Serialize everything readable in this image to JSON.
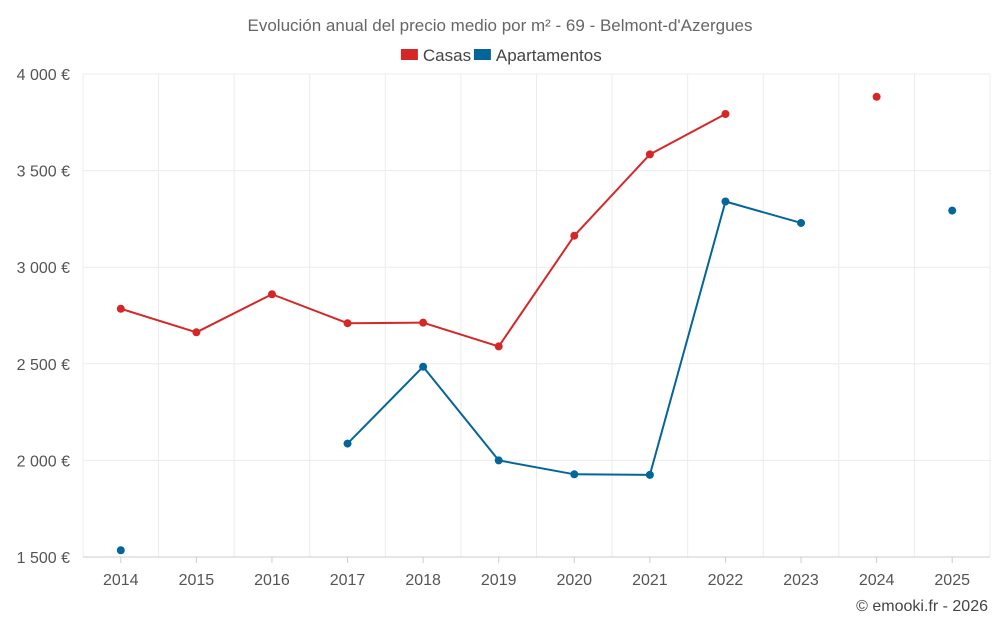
{
  "chart_data": {
    "type": "line",
    "title": "Evolución anual del precio medio por m² - 69 - Belmont-d'Azergues",
    "categories": [
      "2014",
      "2015",
      "2016",
      "2017",
      "2018",
      "2019",
      "2020",
      "2021",
      "2022",
      "2023",
      "2024",
      "2025"
    ],
    "ylim": [
      1500,
      4000
    ],
    "yticks": [
      1500,
      2000,
      2500,
      3000,
      3500,
      4000
    ],
    "ytick_labels": [
      "1 500 €",
      "2 000 €",
      "2 500 €",
      "3 000 €",
      "3 500 €",
      "4 000 €"
    ],
    "xlabel": "",
    "ylabel": "",
    "grid": true,
    "legend_position": "top-center",
    "series": [
      {
        "name": "Casas",
        "color": "#d62728",
        "values": [
          2785,
          2663,
          2860,
          2710,
          2713,
          2590,
          3163,
          3584,
          3793,
          null,
          3882,
          null
        ]
      },
      {
        "name": "Apartamentos",
        "color": "#04659a",
        "values": [
          1535,
          null,
          null,
          2087,
          2485,
          2000,
          1928,
          1925,
          3340,
          3229,
          null,
          3293
        ]
      }
    ],
    "credit": "© emooki.fr - 2026"
  }
}
